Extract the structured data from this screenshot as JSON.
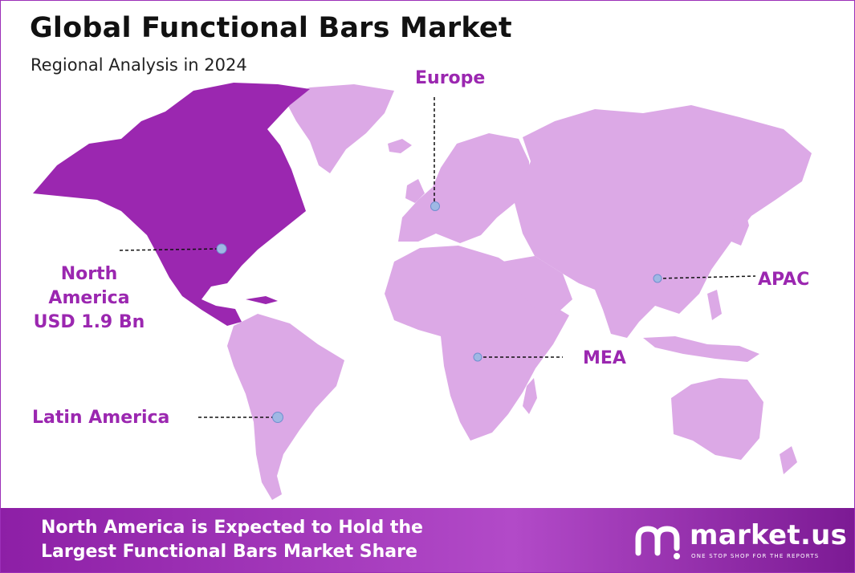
{
  "header": {
    "title": "Global Functional Bars Market",
    "subtitle": "Regional Analysis in 2024"
  },
  "regions": {
    "north_america": {
      "line1": "North",
      "line2": "America",
      "value": "USD 1.9 Bn",
      "highlighted": true
    },
    "latin_america": {
      "label": "Latin America"
    },
    "europe": {
      "label": "Europe"
    },
    "apac": {
      "label": "APAC"
    },
    "mea": {
      "label": "MEA"
    }
  },
  "colors": {
    "highlight": "#9b27b0",
    "land": "#dca9e6",
    "marker": "#9fb8e4",
    "banner": "#a63cbe"
  },
  "footer": {
    "line1": "North America is Expected to Hold the",
    "line2": "Largest Functional Bars Market Share"
  },
  "logo": {
    "name": "market.us",
    "tagline": "ONE STOP SHOP FOR THE REPORTS"
  }
}
